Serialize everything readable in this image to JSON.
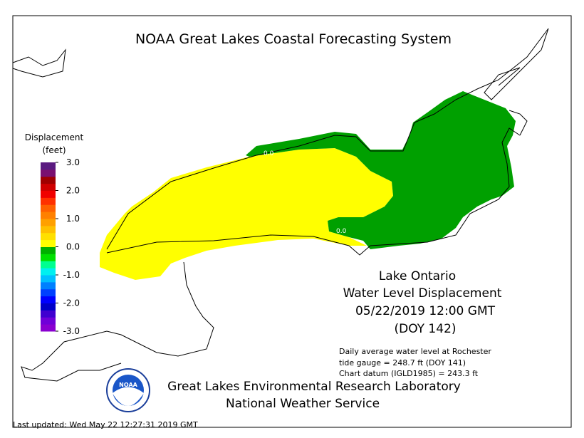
{
  "header": {
    "title": "NOAA Great Lakes Coastal Forecasting System"
  },
  "legend": {
    "title": "Displacement",
    "unit": "(feet)",
    "range": [
      -3,
      3
    ],
    "ticks": [
      {
        "value": 3,
        "label": "3.0"
      },
      {
        "value": 2,
        "label": "2.0"
      },
      {
        "value": 1,
        "label": "1.0"
      },
      {
        "value": 0,
        "label": "0.0"
      },
      {
        "value": -1,
        "label": "-1.0"
      },
      {
        "value": -2,
        "label": "-2.0"
      },
      {
        "value": -3,
        "label": "-3.0"
      }
    ],
    "colors": [
      "#8a00d0",
      "#7000d8",
      "#4000d0",
      "#0000c8",
      "#0000ff",
      "#0040ff",
      "#0080ff",
      "#00c0ff",
      "#00f0f0",
      "#00ff90",
      "#00e000",
      "#00b000",
      "#ffff00",
      "#ffe000",
      "#ffc000",
      "#ffa000",
      "#ff8000",
      "#ff6000",
      "#ff3000",
      "#f00000",
      "#d00000",
      "#a00000",
      "#7a1070",
      "#5a1a80"
    ]
  },
  "contour_labels": [
    "0.0",
    "0.0"
  ],
  "info": {
    "lake": "Lake Ontario",
    "product": "Water Level Displacement",
    "time": "05/22/2019 12:00 GMT",
    "doy": "(DOY 142)",
    "gauge": [
      "Daily average water level at Rochester",
      "tide gauge = 248.7 ft (DOY 141)",
      "Chart datum (IGLD1985) = 243.3 ft"
    ]
  },
  "footer": {
    "logo": "NOAA",
    "lab": "Great Lakes Environmental Research Laboratory",
    "service": "National Weather Service",
    "updated": "Last updated: Wed May 22 12:27:31 2019 GMT"
  }
}
